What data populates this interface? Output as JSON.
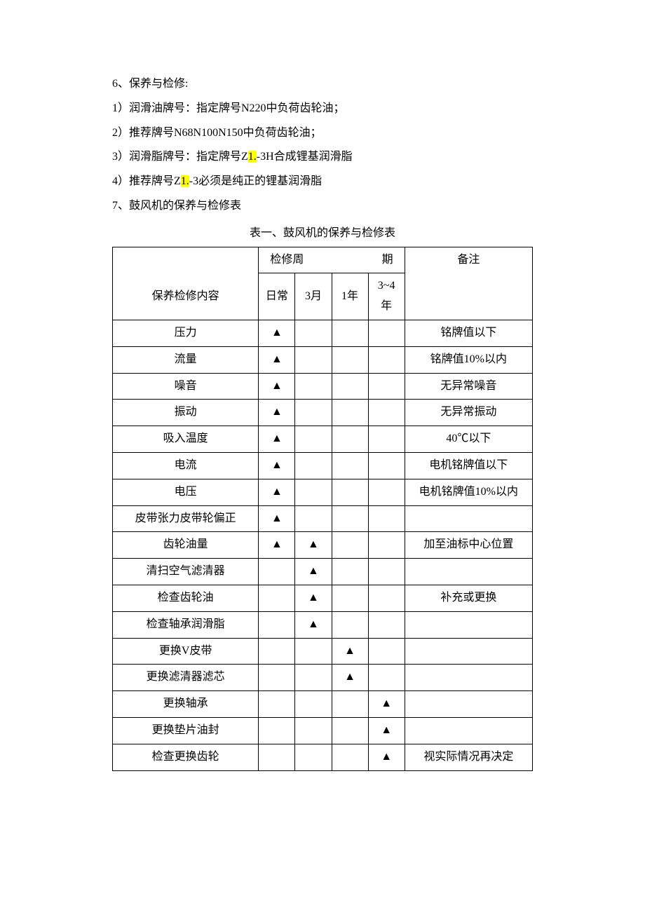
{
  "paragraphs": {
    "p1": "6、保养与检修:",
    "p2": "1）润滑油牌号：指定牌号N220中负荷齿轮油；",
    "p3": "2）推荐牌号N68N100N150中负荷齿轮油；",
    "p4_pre": "3）润滑脂牌号：指定牌号Z",
    "p4_hl": "1.",
    "p4_post": "-3H合成锂基润滑脂",
    "p5_pre": "4）推荐牌号Z",
    "p5_hl": "1.",
    "p5_post": "-3必须是纯正的锂基润滑脂",
    "p6": "7、鼓风机的保养与检修表"
  },
  "table": {
    "caption": "表一、鼓风机的保养与检修表",
    "header": {
      "content_label": "保养检修内容",
      "period_label_left": "检修周",
      "period_label_right": "期",
      "remark_label": "备注",
      "cols": [
        "日常",
        "3月",
        "1年",
        "3~4年"
      ]
    },
    "mark": "▲",
    "rows": [
      {
        "name": "压力",
        "marks": [
          true,
          false,
          false,
          false
        ],
        "remark": "铭牌值以下"
      },
      {
        "name": "流量",
        "marks": [
          true,
          false,
          false,
          false
        ],
        "remark": "铭牌值10%以内"
      },
      {
        "name": "噪音",
        "marks": [
          true,
          false,
          false,
          false
        ],
        "remark": "无异常噪音"
      },
      {
        "name": "振动",
        "marks": [
          true,
          false,
          false,
          false
        ],
        "remark": "无异常振动"
      },
      {
        "name": "吸入温度",
        "marks": [
          true,
          false,
          false,
          false
        ],
        "remark": "40℃以下"
      },
      {
        "name": "电流",
        "marks": [
          true,
          false,
          false,
          false
        ],
        "remark": "电机铭牌值以下"
      },
      {
        "name": "电压",
        "marks": [
          true,
          false,
          false,
          false
        ],
        "remark": "电机铭牌值10%以内"
      },
      {
        "name": "皮带张力皮带轮偏正",
        "marks": [
          true,
          false,
          false,
          false
        ],
        "remark": ""
      },
      {
        "name": "齿轮油量",
        "marks": [
          true,
          true,
          false,
          false
        ],
        "remark": "加至油标中心位置"
      },
      {
        "name": "清扫空气滤清器",
        "marks": [
          false,
          true,
          false,
          false
        ],
        "remark": ""
      },
      {
        "name": "检查齿轮油",
        "marks": [
          false,
          true,
          false,
          false
        ],
        "remark": "补充或更换"
      },
      {
        "name": "检查轴承润滑脂",
        "marks": [
          false,
          true,
          false,
          false
        ],
        "remark": ""
      },
      {
        "name": "更换V皮带",
        "marks": [
          false,
          false,
          true,
          false
        ],
        "remark": ""
      },
      {
        "name": "更换滤清器滤芯",
        "marks": [
          false,
          false,
          true,
          false
        ],
        "remark": ""
      },
      {
        "name": "更换轴承",
        "marks": [
          false,
          false,
          false,
          true
        ],
        "remark": ""
      },
      {
        "name": "更换垫片油封",
        "marks": [
          false,
          false,
          false,
          true
        ],
        "remark": ""
      },
      {
        "name": "检查更换齿轮",
        "marks": [
          false,
          false,
          false,
          true
        ],
        "remark": "视实际情况再决定"
      }
    ]
  }
}
